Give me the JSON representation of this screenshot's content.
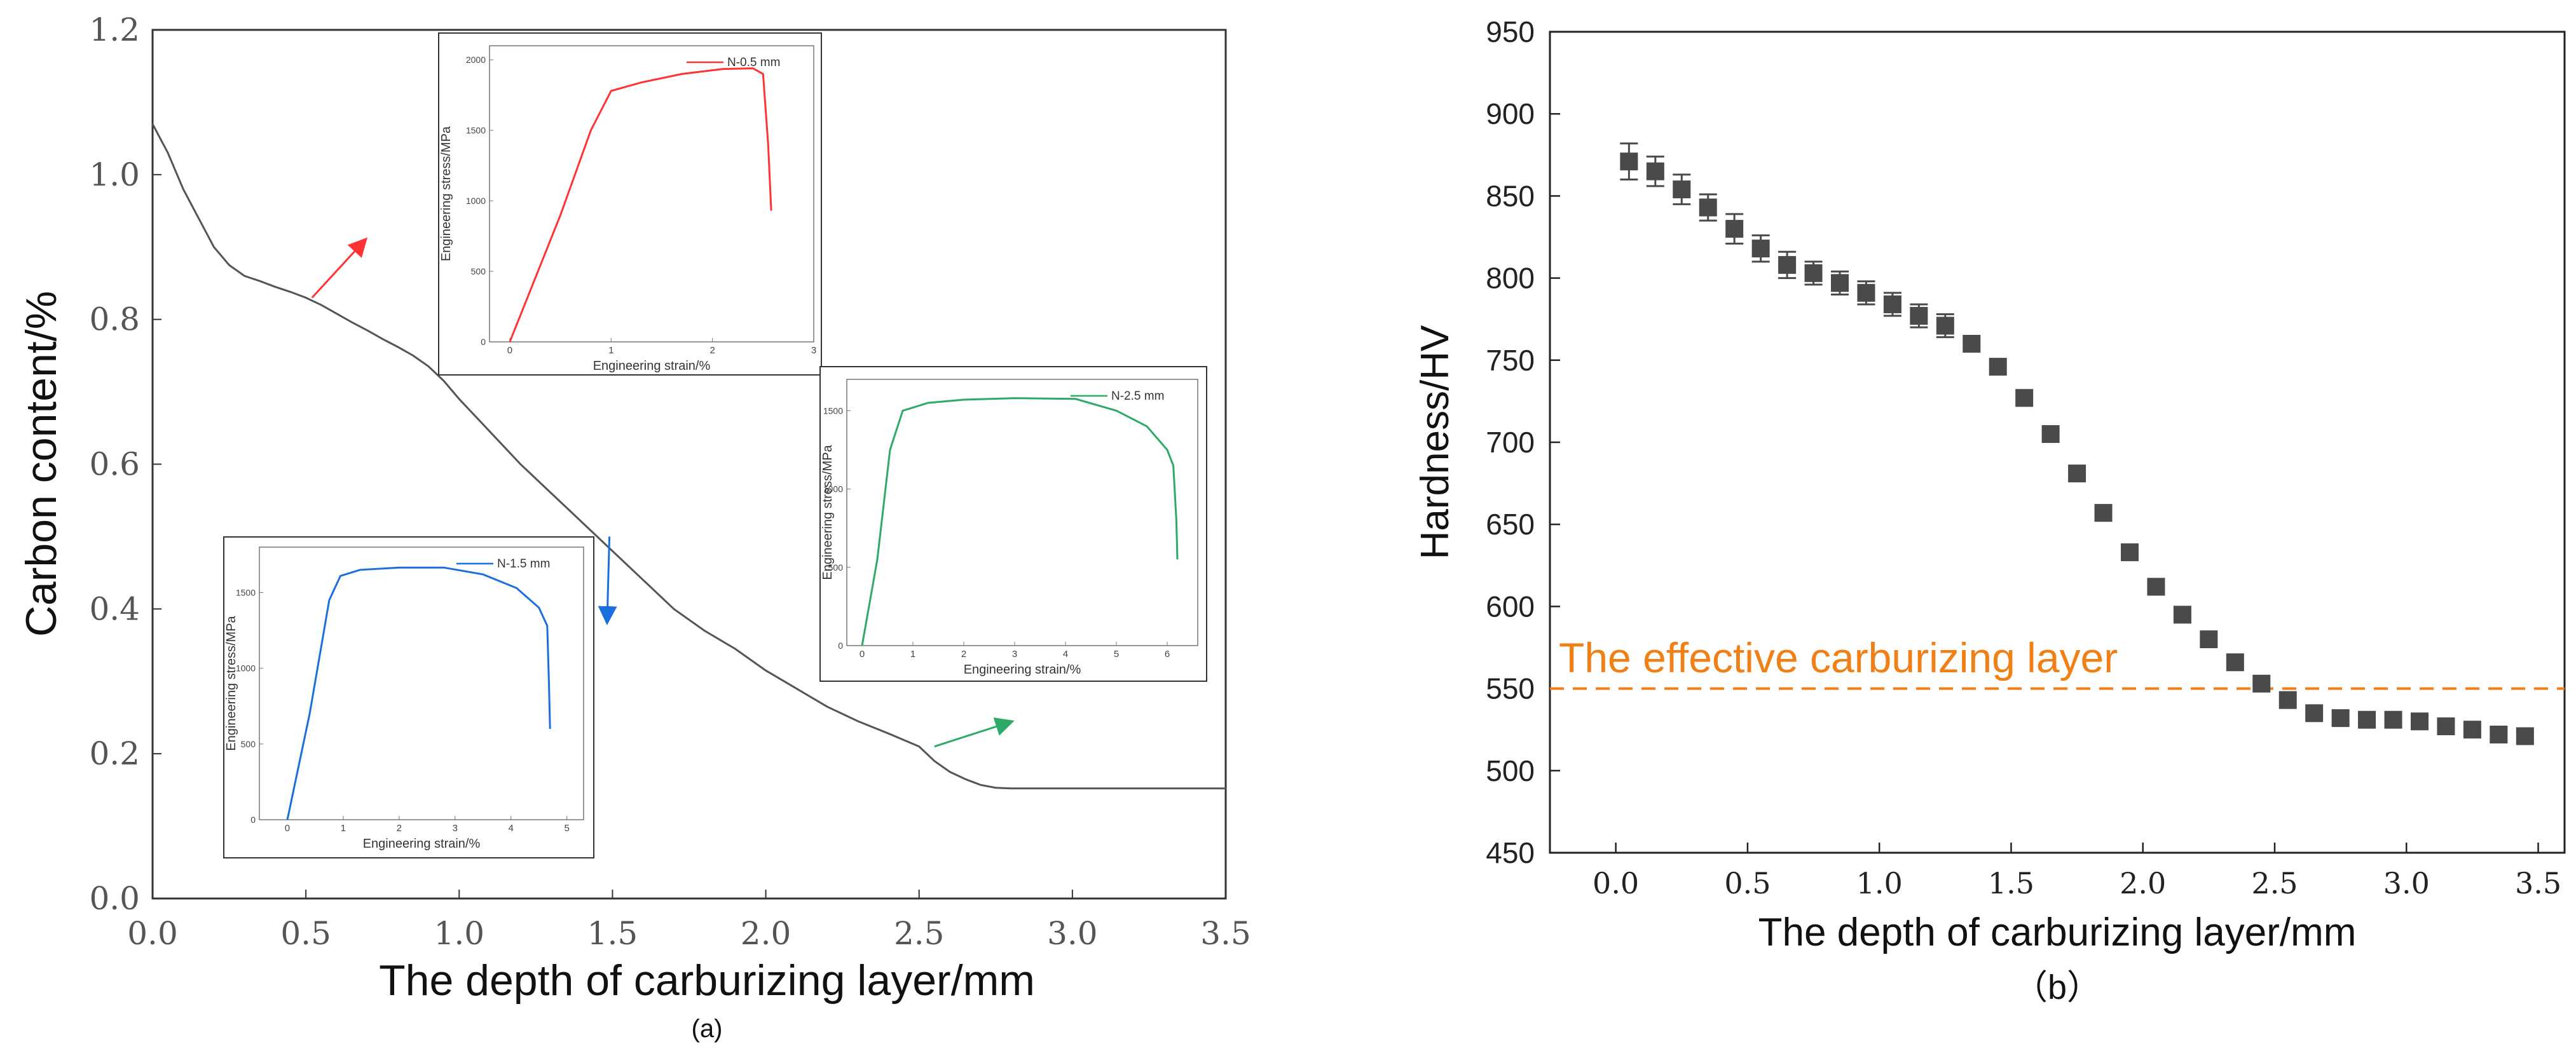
{
  "chart_data": [
    {
      "id": "a",
      "type": "line",
      "caption": "(a)",
      "xlabel": "The depth of carburizing layer/mm",
      "ylabel": "Carbon content/%",
      "xlim": [
        0,
        3.5
      ],
      "ylim": [
        0,
        1.2
      ],
      "xticks": [
        "0.0",
        "0.5",
        "1.0",
        "1.5",
        "2.0",
        "2.5",
        "3.0",
        "3.5"
      ],
      "yticks": [
        "0.0",
        "0.2",
        "0.4",
        "0.6",
        "0.8",
        "1.0",
        "1.2"
      ],
      "series": [
        {
          "name": "Carbon content",
          "color": "#555555",
          "points": [
            [
              0,
              1.07
            ],
            [
              0.05,
              1.03
            ],
            [
              0.1,
              0.98
            ],
            [
              0.15,
              0.94
            ],
            [
              0.2,
              0.9
            ],
            [
              0.25,
              0.875
            ],
            [
              0.3,
              0.86
            ],
            [
              0.35,
              0.853
            ],
            [
              0.4,
              0.845
            ],
            [
              0.45,
              0.838
            ],
            [
              0.5,
              0.83
            ],
            [
              0.55,
              0.82
            ],
            [
              0.6,
              0.808
            ],
            [
              0.65,
              0.796
            ],
            [
              0.7,
              0.785
            ],
            [
              0.75,
              0.773
            ],
            [
              0.8,
              0.762
            ],
            [
              0.85,
              0.75
            ],
            [
              0.9,
              0.735
            ],
            [
              0.95,
              0.715
            ],
            [
              1.0,
              0.69
            ],
            [
              1.1,
              0.645
            ],
            [
              1.2,
              0.6
            ],
            [
              1.3,
              0.56
            ],
            [
              1.4,
              0.52
            ],
            [
              1.5,
              0.48
            ],
            [
              1.6,
              0.44
            ],
            [
              1.7,
              0.4
            ],
            [
              1.8,
              0.37
            ],
            [
              1.9,
              0.345
            ],
            [
              2.0,
              0.315
            ],
            [
              2.1,
              0.29
            ],
            [
              2.2,
              0.265
            ],
            [
              2.3,
              0.245
            ],
            [
              2.4,
              0.228
            ],
            [
              2.5,
              0.21
            ],
            [
              2.55,
              0.19
            ],
            [
              2.6,
              0.175
            ],
            [
              2.65,
              0.165
            ],
            [
              2.7,
              0.157
            ],
            [
              2.75,
              0.153
            ],
            [
              2.8,
              0.152
            ],
            [
              3.0,
              0.152
            ],
            [
              3.5,
              0.152
            ]
          ]
        }
      ],
      "insets": [
        {
          "legend": "N-0.5 mm",
          "color": "#ff3333",
          "xlabel": "Engineering strain/%",
          "ylabel": "Engineering stress/MPa",
          "xlim": [
            -0.2,
            3
          ],
          "ylim": [
            0,
            2100
          ],
          "xticks": [
            "0",
            "1",
            "2",
            "3"
          ],
          "yticks": [
            "0",
            "500",
            "1000",
            "1500",
            "2000"
          ],
          "points": [
            [
              0,
              0
            ],
            [
              0.5,
              900
            ],
            [
              0.8,
              1500
            ],
            [
              1.0,
              1780
            ],
            [
              1.3,
              1840
            ],
            [
              1.7,
              1900
            ],
            [
              2.1,
              1935
            ],
            [
              2.4,
              1940
            ],
            [
              2.5,
              1900
            ],
            [
              2.55,
              1400
            ],
            [
              2.58,
              930
            ]
          ],
          "arrow_from": [
            0.52,
            0.83
          ]
        },
        {
          "legend": "N-1.5 mm",
          "color": "#1a6fdd",
          "xlabel": "Engineering strain/%",
          "ylabel": "Engineering stress/MPa",
          "xlim": [
            -0.5,
            5.3
          ],
          "ylim": [
            0,
            1800
          ],
          "xticks": [
            "0",
            "1",
            "2",
            "3",
            "4",
            "5"
          ],
          "yticks": [
            "0",
            "500",
            "1000",
            "1500"
          ],
          "points": [
            [
              0,
              0
            ],
            [
              0.4,
              700
            ],
            [
              0.75,
              1450
            ],
            [
              0.95,
              1610
            ],
            [
              1.3,
              1650
            ],
            [
              2,
              1665
            ],
            [
              2.8,
              1665
            ],
            [
              3.5,
              1620
            ],
            [
              4.1,
              1530
            ],
            [
              4.5,
              1400
            ],
            [
              4.65,
              1280
            ],
            [
              4.68,
              900
            ],
            [
              4.7,
              600
            ]
          ],
          "arrow_from": [
            1.49,
            0.5
          ]
        },
        {
          "legend": "N-2.5 mm",
          "color": "#2daa66",
          "xlabel": "Engineering strain/%",
          "ylabel": "Engineering stress/MPa",
          "xlim": [
            -0.3,
            6.6
          ],
          "ylim": [
            0,
            1700
          ],
          "xticks": [
            "0",
            "1",
            "2",
            "3",
            "4",
            "5",
            "6"
          ],
          "yticks": [
            "0",
            "500",
            "1000",
            "1500"
          ],
          "points": [
            [
              0,
              0
            ],
            [
              0.3,
              550
            ],
            [
              0.55,
              1250
            ],
            [
              0.8,
              1500
            ],
            [
              1.3,
              1550
            ],
            [
              2,
              1570
            ],
            [
              3,
              1580
            ],
            [
              4.2,
              1575
            ],
            [
              5,
              1500
            ],
            [
              5.6,
              1400
            ],
            [
              6,
              1250
            ],
            [
              6.12,
              1150
            ],
            [
              6.18,
              800
            ],
            [
              6.2,
              550
            ]
          ],
          "arrow_from": [
            2.55,
            0.21
          ]
        }
      ]
    },
    {
      "id": "b",
      "type": "scatter",
      "caption": "（b）",
      "xlabel": "The depth of carburizing layer/mm",
      "ylabel": "Hardness/HV",
      "xlim": [
        -0.25,
        3.6
      ],
      "ylim": [
        450,
        950
      ],
      "xticks": [
        "0.0",
        "0.5",
        "1.0",
        "1.5",
        "2.0",
        "2.5",
        "3.0",
        "3.5"
      ],
      "yticks": [
        "450",
        "500",
        "550",
        "600",
        "650",
        "700",
        "750",
        "800",
        "850",
        "900",
        "950"
      ],
      "series": [
        {
          "name": "Hardness",
          "color": "#4a4a4a",
          "x": [
            0.05,
            0.15,
            0.25,
            0.35,
            0.45,
            0.55,
            0.65,
            0.75,
            0.85,
            0.95,
            1.05,
            1.15,
            1.25,
            1.35,
            1.45,
            1.55,
            1.65,
            1.75,
            1.85,
            1.95,
            2.05,
            2.15,
            2.25,
            2.35,
            2.45,
            2.55,
            2.65,
            2.75,
            2.85,
            2.95,
            3.05,
            3.15,
            3.25,
            3.35,
            3.45
          ],
          "y": [
            871,
            865,
            854,
            843,
            830,
            818,
            808,
            803,
            797,
            791,
            784,
            777,
            771,
            760,
            746,
            727,
            705,
            681,
            657,
            633,
            612,
            595,
            580,
            566,
            553,
            543,
            535,
            532,
            531,
            531,
            530,
            527,
            525,
            522,
            521
          ],
          "err": [
            11,
            9,
            9,
            8,
            9,
            8,
            8,
            7,
            7,
            7,
            7,
            7,
            7,
            0,
            0,
            0,
            0,
            0,
            0,
            0,
            0,
            0,
            0,
            0,
            0,
            0,
            0,
            4,
            4,
            4,
            0,
            0,
            0,
            4,
            0
          ]
        }
      ],
      "reference_line": {
        "y": 550,
        "label": "The effective carburizing layer",
        "color": "#f07f16"
      }
    }
  ]
}
